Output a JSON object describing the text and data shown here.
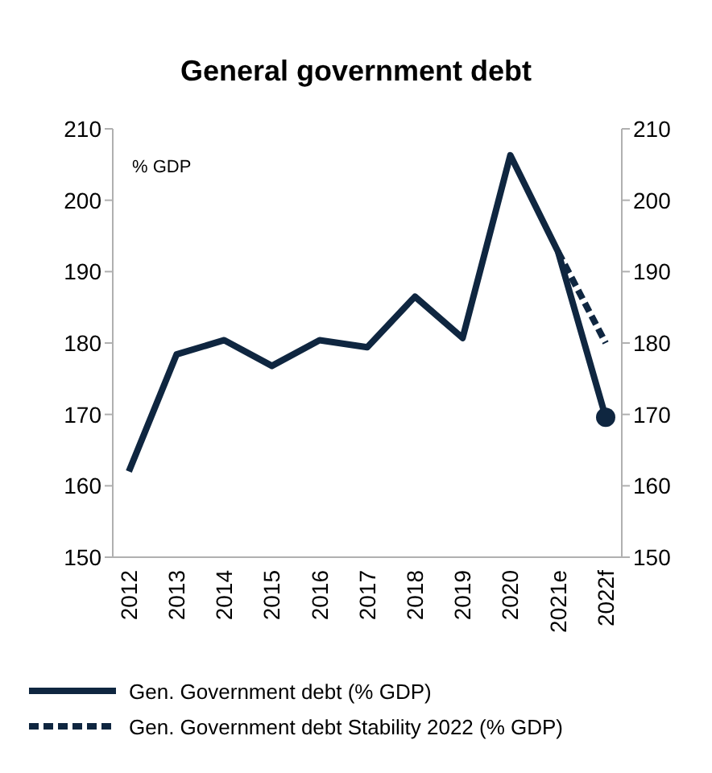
{
  "chart_data": {
    "type": "line",
    "title": "General government debt",
    "ylabel": "% GDP",
    "categories": [
      "2012",
      "2013",
      "2014",
      "2015",
      "2016",
      "2017",
      "2018",
      "2019",
      "2020",
      "2021e",
      "2022f"
    ],
    "series": [
      {
        "name": "Gen. Government debt (% GDP)",
        "color": "#0f2640",
        "line_style": "solid",
        "values": [
          162,
          178.4,
          180.4,
          176.8,
          180.4,
          179.4,
          186.5,
          180.7,
          206.3,
          192.8,
          169.6
        ]
      },
      {
        "name": "Gen. Government debt Stability 2022 (% GDP)",
        "color": "#0f2640",
        "line_style": "dashed",
        "values": [
          null,
          null,
          null,
          null,
          null,
          null,
          null,
          null,
          null,
          192.8,
          180
        ]
      },
      {
        "type": "scatter",
        "color": "#0f2640",
        "marker": "circle",
        "values": [
          null,
          null,
          null,
          null,
          null,
          null,
          null,
          null,
          null,
          null,
          169.6
        ]
      }
    ],
    "ylim": [
      150,
      210
    ],
    "yticks": [
      150,
      160,
      170,
      180,
      190,
      200,
      210
    ],
    "y2lim": [
      150,
      210
    ],
    "y2ticks": [
      150,
      160,
      170,
      180,
      190,
      200,
      210
    ],
    "grid": false,
    "legend": "bottom"
  }
}
